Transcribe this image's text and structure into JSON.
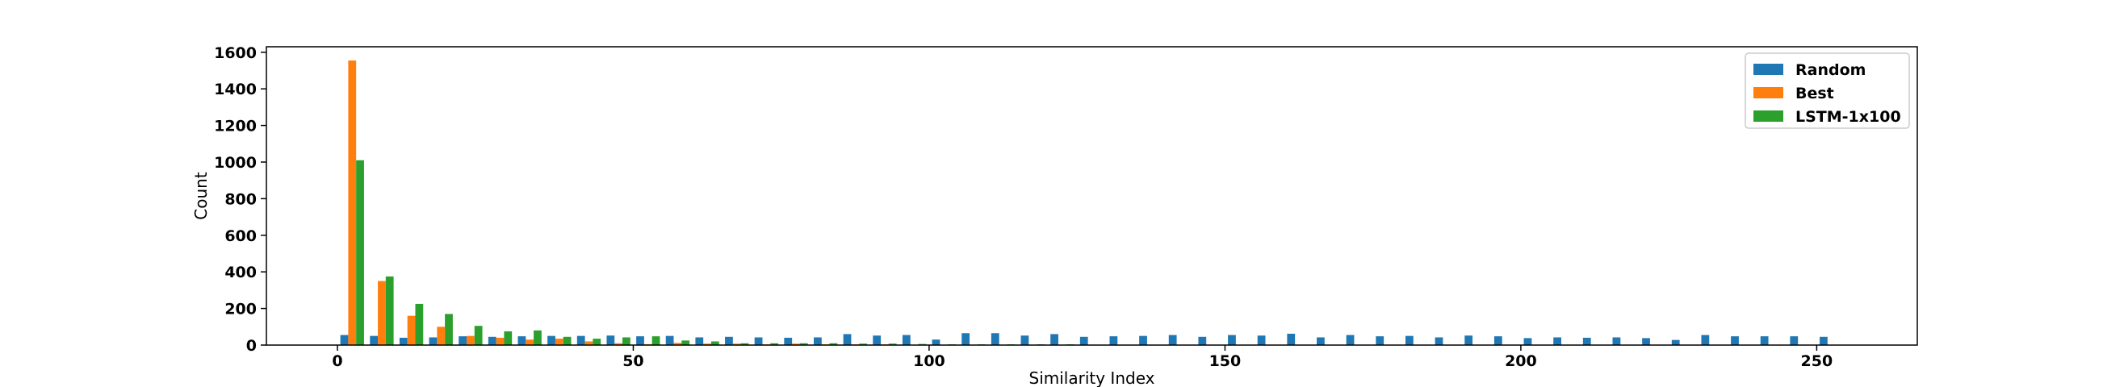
{
  "chart_data": {
    "type": "bar",
    "title": "",
    "xlabel": "Similarity Index",
    "ylabel": "Count",
    "xlim": [
      -12,
      267
    ],
    "ylim": [
      0,
      1630
    ],
    "xticks": [
      0,
      50,
      100,
      150,
      200,
      250
    ],
    "yticks": [
      0,
      200,
      400,
      600,
      800,
      1000,
      1200,
      1400,
      1600
    ],
    "bin_width": 5,
    "bin_start": 0,
    "legend_position": "top-right",
    "grid": false,
    "series": [
      {
        "name": "Random",
        "color": "#1f77b4",
        "values": [
          55,
          50,
          40,
          42,
          48,
          45,
          48,
          50,
          50,
          52,
          48,
          50,
          42,
          45,
          42,
          40,
          42,
          60,
          52,
          55,
          30,
          65,
          65,
          52,
          60,
          45,
          48,
          50,
          55,
          45,
          55,
          52,
          62,
          42,
          55,
          48,
          50,
          42,
          52,
          48,
          38,
          42,
          40,
          42,
          38,
          28,
          55,
          48,
          48,
          48,
          45
        ]
      },
      {
        "name": "Best",
        "color": "#ff7f0e",
        "values": [
          1555,
          350,
          160,
          100,
          50,
          40,
          30,
          35,
          20,
          10,
          5,
          12,
          8,
          8,
          4,
          8,
          4,
          4,
          4,
          2,
          2,
          2,
          0,
          0,
          0,
          0,
          0,
          0,
          0,
          0,
          0,
          0,
          0,
          0,
          0,
          0,
          0,
          0,
          0,
          0,
          0,
          0,
          0,
          0,
          0,
          0,
          0,
          0,
          0,
          0,
          0
        ]
      },
      {
        "name": "LSTM-1x100",
        "color": "#2ca02c",
        "values": [
          1010,
          375,
          225,
          170,
          105,
          75,
          80,
          45,
          35,
          42,
          48,
          25,
          20,
          10,
          10,
          10,
          10,
          8,
          8,
          6,
          4,
          4,
          4,
          4,
          4,
          2,
          2,
          2,
          2,
          0,
          0,
          0,
          0,
          0,
          0,
          0,
          0,
          0,
          0,
          0,
          0,
          0,
          0,
          0,
          0,
          0,
          0,
          0,
          0,
          0,
          0
        ]
      }
    ]
  }
}
